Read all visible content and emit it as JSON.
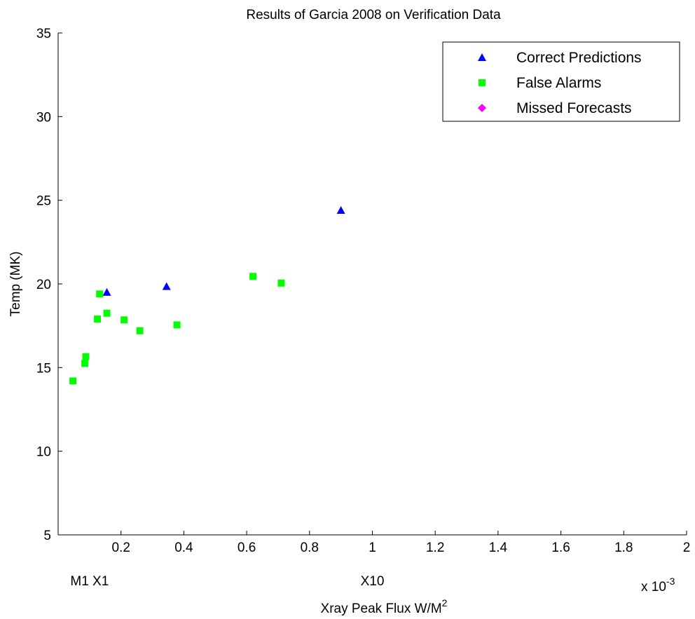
{
  "chart_data": {
    "type": "scatter",
    "title": "Results of Garcia 2008 on Verification Data",
    "xlabel": "Xray Peak Flux W/M",
    "xlabel_sup": "2",
    "ylabel": "Temp (MK)",
    "xlim": [
      0.0,
      2.0
    ],
    "ylim": [
      5,
      35
    ],
    "x_exponent": {
      "base": "x 10",
      "exp": "-3"
    },
    "xticks": [
      0.2,
      0.4,
      0.6,
      0.8,
      1,
      1.2,
      1.4,
      1.6,
      1.8,
      2
    ],
    "xtick_labels": [
      "0.2",
      "0.4",
      "0.6",
      "0.8",
      "1",
      "1.2",
      "1.4",
      "1.6",
      "1.8",
      "2"
    ],
    "yticks": [
      5,
      10,
      15,
      20,
      25,
      30,
      35
    ],
    "ytick_labels": [
      "5",
      "10",
      "15",
      "20",
      "25",
      "30",
      "35"
    ],
    "grid": false,
    "legend_position": "top-right",
    "annotations": [
      {
        "text": "M1 X1",
        "x": 0.1
      },
      {
        "text": "X10",
        "x": 1.0
      }
    ],
    "series": [
      {
        "name": "Correct Predictions",
        "marker": "triangle",
        "color": "#0000ff",
        "points": [
          [
            0.155,
            19.5
          ],
          [
            0.345,
            19.85
          ],
          [
            0.9,
            24.4
          ]
        ]
      },
      {
        "name": "False Alarms",
        "marker": "square",
        "color": "#00ff00",
        "points": [
          [
            0.047,
            14.2
          ],
          [
            0.085,
            15.25
          ],
          [
            0.088,
            15.65
          ],
          [
            0.125,
            17.9
          ],
          [
            0.132,
            19.4
          ],
          [
            0.155,
            18.25
          ],
          [
            0.21,
            17.85
          ],
          [
            0.26,
            17.2
          ],
          [
            0.378,
            17.55
          ],
          [
            0.62,
            20.45
          ],
          [
            0.71,
            20.05
          ]
        ]
      },
      {
        "name": "Missed Forecasts",
        "marker": "diamond",
        "color": "#ff00ff",
        "points": []
      }
    ]
  }
}
